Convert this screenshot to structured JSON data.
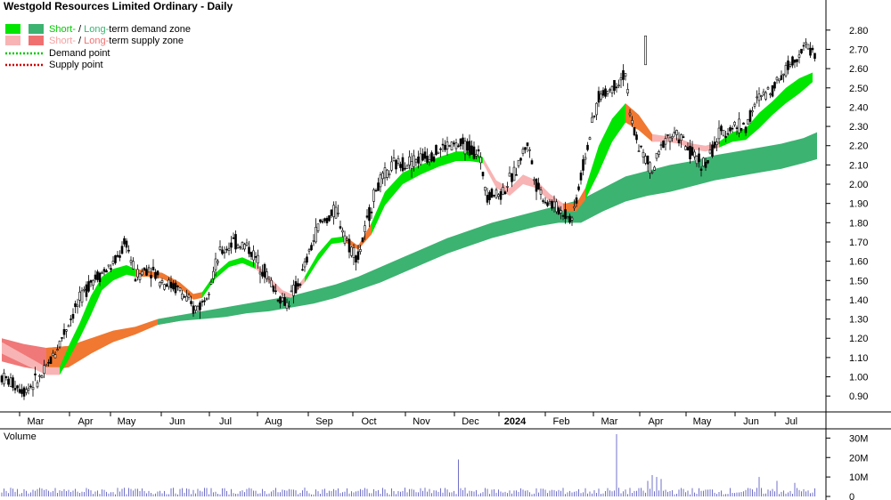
{
  "chart_data": {
    "type": "candlestick",
    "title": "Westgold Resources Limited Ordinary - Daily",
    "legend": [
      {
        "parts": [
          "Short-",
          " / ",
          "Long-",
          "term demand zone"
        ],
        "colors": [
          "#00c800",
          "#000000",
          "#3cb371",
          "#000000"
        ],
        "swatches": [
          "#00e600",
          "#3cb371"
        ]
      },
      {
        "parts": [
          "Short-",
          " / ",
          "Long-",
          "term supply zone"
        ],
        "colors": [
          "#f4a0a0",
          "#000000",
          "#f07070",
          "#000000"
        ],
        "swatches": [
          "#f8b4b4",
          "#f07070"
        ]
      },
      {
        "parts": [
          "Demand point"
        ],
        "colors": [
          "#000000"
        ],
        "line": "#00c800"
      },
      {
        "parts": [
          "Supply point"
        ],
        "colors": [
          "#000000"
        ],
        "line": "#d00000"
      }
    ],
    "price_axis": {
      "min": 0.85,
      "max": 2.85,
      "ticks": [
        "2.80",
        "2.70",
        "2.60",
        "2.50",
        "2.40",
        "2.30",
        "2.20",
        "2.10",
        "2.00",
        "1.90",
        "1.80",
        "1.70",
        "1.60",
        "1.50",
        "1.40",
        "1.30",
        "1.20",
        "1.10",
        "1.00",
        "0.90"
      ]
    },
    "x_ticks": [
      "Mar",
      "Apr",
      "May",
      "Jun",
      "Jul",
      "Aug",
      "Sep",
      "Oct",
      "Nov",
      "Dec",
      "2024",
      "Feb",
      "Mar",
      "Apr",
      "May",
      "Jun",
      "Jul"
    ],
    "volume_label": "Volume",
    "volume_axis": {
      "max": 32,
      "ticks": [
        "30M",
        "20M",
        "10M",
        "0"
      ]
    },
    "price_anchors": [
      [
        0,
        1.0
      ],
      [
        10,
        0.93
      ],
      [
        18,
        1.0
      ],
      [
        24,
        1.13
      ],
      [
        32,
        1.33
      ],
      [
        40,
        1.5
      ],
      [
        50,
        1.58
      ],
      [
        56,
        1.7
      ],
      [
        60,
        1.52
      ],
      [
        66,
        1.57
      ],
      [
        72,
        1.5
      ],
      [
        80,
        1.45
      ],
      [
        86,
        1.35
      ],
      [
        90,
        1.38
      ],
      [
        98,
        1.64
      ],
      [
        104,
        1.7
      ],
      [
        110,
        1.68
      ],
      [
        118,
        1.55
      ],
      [
        124,
        1.42
      ],
      [
        128,
        1.38
      ],
      [
        134,
        1.5
      ],
      [
        142,
        1.78
      ],
      [
        150,
        1.86
      ],
      [
        156,
        1.68
      ],
      [
        160,
        1.62
      ],
      [
        168,
        1.98
      ],
      [
        176,
        2.1
      ],
      [
        184,
        2.12
      ],
      [
        192,
        2.15
      ],
      [
        200,
        2.2
      ],
      [
        208,
        2.2
      ],
      [
        214,
        2.16
      ],
      [
        218,
        1.95
      ],
      [
        224,
        1.95
      ],
      [
        230,
        2.05
      ],
      [
        236,
        2.22
      ],
      [
        240,
        2.0
      ],
      [
        244,
        1.92
      ],
      [
        250,
        1.87
      ],
      [
        256,
        1.82
      ],
      [
        262,
        2.15
      ],
      [
        268,
        2.45
      ],
      [
        274,
        2.5
      ],
      [
        280,
        2.58
      ],
      [
        282,
        2.35
      ],
      [
        286,
        2.2
      ],
      [
        292,
        2.06
      ],
      [
        298,
        2.25
      ],
      [
        304,
        2.25
      ],
      [
        310,
        2.15
      ],
      [
        316,
        2.1
      ],
      [
        322,
        2.25
      ],
      [
        328,
        2.3
      ],
      [
        334,
        2.3
      ],
      [
        340,
        2.45
      ],
      [
        346,
        2.5
      ],
      [
        352,
        2.6
      ],
      [
        358,
        2.68
      ],
      [
        362,
        2.72
      ],
      [
        366,
        2.65
      ]
    ],
    "st_zone": [
      [
        0,
        1.18,
        1.12
      ],
      [
        20,
        1.05,
        1.01
      ],
      [
        26,
        1.05,
        1.01
      ],
      [
        30,
        1.16,
        1.09
      ],
      [
        35,
        1.28,
        1.2
      ],
      [
        40,
        1.42,
        1.32
      ],
      [
        45,
        1.52,
        1.45
      ],
      [
        50,
        1.56,
        1.5
      ],
      [
        56,
        1.58,
        1.53
      ],
      [
        60,
        1.56,
        1.52
      ],
      [
        66,
        1.55,
        1.52
      ],
      [
        72,
        1.54,
        1.51
      ],
      [
        80,
        1.49,
        1.46
      ],
      [
        86,
        1.43,
        1.4
      ],
      [
        90,
        1.44,
        1.41
      ],
      [
        96,
        1.54,
        1.51
      ],
      [
        102,
        1.6,
        1.57
      ],
      [
        108,
        1.62,
        1.59
      ],
      [
        114,
        1.59,
        1.56
      ],
      [
        120,
        1.52,
        1.49
      ],
      [
        126,
        1.45,
        1.42
      ],
      [
        130,
        1.43,
        1.41
      ],
      [
        136,
        1.52,
        1.49
      ],
      [
        142,
        1.64,
        1.6
      ],
      [
        148,
        1.72,
        1.69
      ],
      [
        154,
        1.73,
        1.7
      ],
      [
        160,
        1.68,
        1.66
      ],
      [
        166,
        1.8,
        1.74
      ],
      [
        172,
        1.96,
        1.89
      ],
      [
        180,
        2.06,
        2.0
      ],
      [
        188,
        2.1,
        2.05
      ],
      [
        196,
        2.14,
        2.09
      ],
      [
        204,
        2.17,
        2.12
      ],
      [
        210,
        2.17,
        2.12
      ],
      [
        216,
        2.14,
        2.11
      ],
      [
        222,
        2.02,
        1.98
      ],
      [
        228,
        1.98,
        1.94
      ],
      [
        234,
        2.05,
        2.0
      ],
      [
        240,
        2.02,
        1.98
      ],
      [
        246,
        1.95,
        1.91
      ],
      [
        252,
        1.9,
        1.86
      ],
      [
        258,
        1.9,
        1.86
      ],
      [
        262,
        1.98,
        1.92
      ],
      [
        268,
        2.2,
        2.06
      ],
      [
        274,
        2.34,
        2.22
      ],
      [
        280,
        2.42,
        2.32
      ],
      [
        286,
        2.36,
        2.28
      ],
      [
        292,
        2.26,
        2.22
      ],
      [
        298,
        2.25,
        2.22
      ],
      [
        304,
        2.24,
        2.21
      ],
      [
        310,
        2.21,
        2.18
      ],
      [
        316,
        2.2,
        2.17
      ],
      [
        322,
        2.22,
        2.19
      ],
      [
        328,
        2.27,
        2.22
      ],
      [
        334,
        2.29,
        2.23
      ],
      [
        340,
        2.37,
        2.29
      ],
      [
        346,
        2.43,
        2.36
      ],
      [
        352,
        2.5,
        2.42
      ],
      [
        358,
        2.55,
        2.47
      ],
      [
        364,
        2.58,
        2.53
      ]
    ],
    "lt_zone": [
      [
        0,
        1.2,
        1.08
      ],
      [
        10,
        1.17,
        1.05
      ],
      [
        20,
        1.15,
        1.03
      ],
      [
        30,
        1.16,
        1.05
      ],
      [
        40,
        1.2,
        1.12
      ],
      [
        50,
        1.24,
        1.18
      ],
      [
        60,
        1.26,
        1.22
      ],
      [
        70,
        1.3,
        1.27
      ],
      [
        80,
        1.32,
        1.29
      ],
      [
        90,
        1.34,
        1.3
      ],
      [
        100,
        1.36,
        1.31
      ],
      [
        110,
        1.38,
        1.33
      ],
      [
        120,
        1.4,
        1.34
      ],
      [
        130,
        1.42,
        1.36
      ],
      [
        140,
        1.45,
        1.38
      ],
      [
        150,
        1.48,
        1.41
      ],
      [
        160,
        1.52,
        1.45
      ],
      [
        170,
        1.57,
        1.49
      ],
      [
        180,
        1.62,
        1.54
      ],
      [
        190,
        1.67,
        1.59
      ],
      [
        200,
        1.72,
        1.64
      ],
      [
        210,
        1.76,
        1.68
      ],
      [
        220,
        1.8,
        1.72
      ],
      [
        230,
        1.83,
        1.75
      ],
      [
        240,
        1.86,
        1.78
      ],
      [
        250,
        1.89,
        1.8
      ],
      [
        260,
        1.92,
        1.8
      ],
      [
        270,
        1.98,
        1.86
      ],
      [
        280,
        2.04,
        1.91
      ],
      [
        290,
        2.07,
        1.94
      ],
      [
        300,
        2.1,
        1.96
      ],
      [
        310,
        2.12,
        1.99
      ],
      [
        320,
        2.15,
        2.02
      ],
      [
        330,
        2.17,
        2.04
      ],
      [
        340,
        2.19,
        2.06
      ],
      [
        350,
        2.21,
        2.08
      ],
      [
        360,
        2.24,
        2.11
      ],
      [
        366,
        2.27,
        2.13
      ]
    ],
    "volume_spikes": [
      [
        205,
        19
      ],
      [
        276,
        32
      ],
      [
        290,
        8
      ],
      [
        292,
        11
      ],
      [
        294,
        10
      ],
      [
        296,
        9
      ],
      [
        340,
        10
      ],
      [
        348,
        8
      ],
      [
        356,
        7
      ]
    ]
  }
}
